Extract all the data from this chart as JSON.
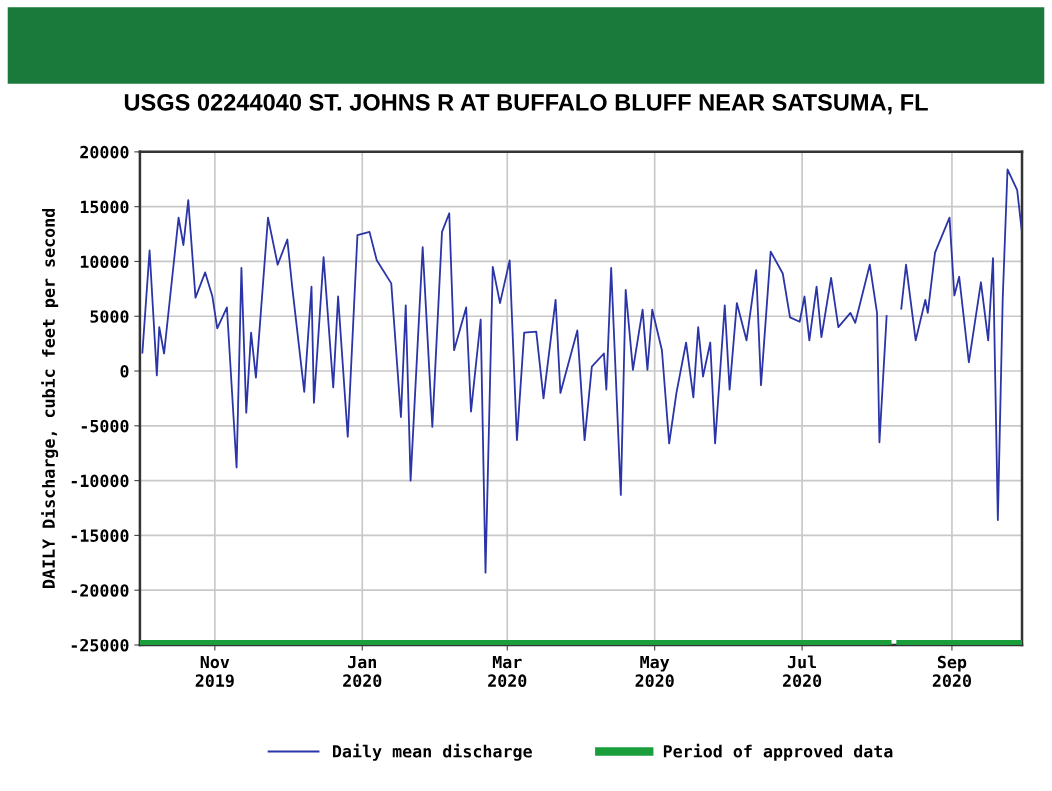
{
  "chart_data": {
    "type": "line",
    "title": "USGS 02244040 ST. JOHNS R AT BUFFALO BLUFF NEAR SATSUMA, FL",
    "ylabel": "DAILY Discharge, cubic feet per second",
    "xlim": [
      "2019-10-01",
      "2020-09-30"
    ],
    "xticks": [
      {
        "value": "2019-11-01",
        "label": "Nov\n2019"
      },
      {
        "value": "2020-01-01",
        "label": "Jan\n2020"
      },
      {
        "value": "2020-03-01",
        "label": "Mar\n2020"
      },
      {
        "value": "2020-05-01",
        "label": "May\n2020"
      },
      {
        "value": "2020-07-01",
        "label": "Jul\n2020"
      },
      {
        "value": "2020-09-01",
        "label": "Sep\n2020"
      }
    ],
    "ylim": [
      -25000,
      20000
    ],
    "yticks": [
      -25000,
      -20000,
      -15000,
      -10000,
      -5000,
      0,
      5000,
      10000,
      15000,
      20000
    ],
    "grid": true,
    "legend": "bottom",
    "marker": "none",
    "series": [
      {
        "name": "Daily mean discharge",
        "color": "#2b35a8",
        "line_style": "solid",
        "x": [
          "2019-10-02",
          "2019-10-05",
          "2019-10-08",
          "2019-10-09",
          "2019-10-11",
          "2019-10-17",
          "2019-10-19",
          "2019-10-21",
          "2019-10-24",
          "2019-10-28",
          "2019-10-31",
          "2019-11-02",
          "2019-11-06",
          "2019-11-10",
          "2019-11-12",
          "2019-11-14",
          "2019-11-16",
          "2019-11-18",
          "2019-11-23",
          "2019-11-27",
          "2019-12-01",
          "2019-12-03",
          "2019-12-08",
          "2019-12-11",
          "2019-12-12",
          "2019-12-16",
          "2019-12-20",
          "2019-12-22",
          "2019-12-26",
          "2019-12-30",
          "2020-01-04",
          "2020-01-07",
          "2020-01-13",
          "2020-01-17",
          "2020-01-19",
          "2020-01-21",
          "2020-01-26",
          "2020-01-30",
          "2020-02-03",
          "2020-02-06",
          "2020-02-08",
          "2020-02-13",
          "2020-02-15",
          "2020-02-19",
          "2020-02-21",
          "2020-02-24",
          "2020-02-27",
          "2020-03-02",
          "2020-03-05",
          "2020-03-08",
          "2020-03-13",
          "2020-03-16",
          "2020-03-21",
          "2020-03-23",
          "2020-03-30",
          "2020-04-02",
          "2020-04-05",
          "2020-04-10",
          "2020-04-11",
          "2020-04-13",
          "2020-04-17",
          "2020-04-19",
          "2020-04-22",
          "2020-04-26",
          "2020-04-28",
          "2020-04-30",
          "2020-05-04",
          "2020-05-07",
          "2020-05-10",
          "2020-05-14",
          "2020-05-17",
          "2020-05-19",
          "2020-05-21",
          "2020-05-24",
          "2020-05-26",
          "2020-05-30",
          "2020-06-01",
          "2020-06-04",
          "2020-06-08",
          "2020-06-12",
          "2020-06-14",
          "2020-06-18",
          "2020-06-23",
          "2020-06-26",
          "2020-06-30",
          "2020-07-02",
          "2020-07-04",
          "2020-07-07",
          "2020-07-09",
          "2020-07-13",
          "2020-07-16",
          "2020-07-21",
          "2020-07-23",
          "2020-07-29",
          "2020-08-01",
          "2020-08-02",
          "2020-08-05",
          "2020-08-07",
          "2020-08-11",
          "2020-08-13",
          "2020-08-17",
          "2020-08-21",
          "2020-08-22",
          "2020-08-25",
          "2020-08-31",
          "2020-09-02",
          "2020-09-04",
          "2020-09-08",
          "2020-09-13",
          "2020-09-16",
          "2020-09-18",
          "2020-09-20",
          "2020-09-22",
          "2020-09-24",
          "2020-09-28",
          "2020-09-30"
        ],
        "values": [
          1600,
          11000,
          -400,
          4000,
          1600,
          14000,
          11500,
          15600,
          6700,
          9000,
          6800,
          3900,
          5800,
          -8800,
          9400,
          -3800,
          3500,
          -600,
          14000,
          9700,
          12000,
          7700,
          -1900,
          7700,
          -2900,
          10400,
          -1500,
          6800,
          -6000,
          12400,
          12700,
          10100,
          8000,
          -4200,
          6000,
          -10000,
          11300,
          -5100,
          12700,
          14400,
          1900,
          5800,
          -3700,
          4700,
          -18400,
          9500,
          6200,
          10100,
          -6300,
          3500,
          3600,
          -2500,
          6500,
          -2000,
          3700,
          -6300,
          400,
          1600,
          -1700,
          9400,
          -11300,
          7400,
          100,
          5600,
          100,
          5600,
          1900,
          -6600,
          -2000,
          2600,
          -2400,
          4000,
          -500,
          2600,
          -6600,
          6000,
          -1700,
          6200,
          2800,
          9200,
          -1300,
          10900,
          8900,
          4900,
          4500,
          6800,
          2800,
          7700,
          3100,
          8500,
          4000,
          5300,
          4400,
          9700,
          5300,
          -6500,
          5100,
          null,
          5600,
          9700,
          2800,
          6500,
          5300,
          10800,
          14000,
          6900,
          8600,
          800,
          8100,
          2800,
          10300,
          -13600,
          6500,
          18400,
          16500,
          12600
        ]
      },
      {
        "name": "Period of approved data",
        "color": "#1a9e3c",
        "line_style": "solid",
        "x": [
          "2019-10-01",
          "2020-08-07",
          "2020-08-08",
          "2020-08-09",
          "2020-09-30"
        ],
        "values": [
          -25000,
          -25000,
          null,
          -25000,
          -25000
        ]
      }
    ]
  }
}
